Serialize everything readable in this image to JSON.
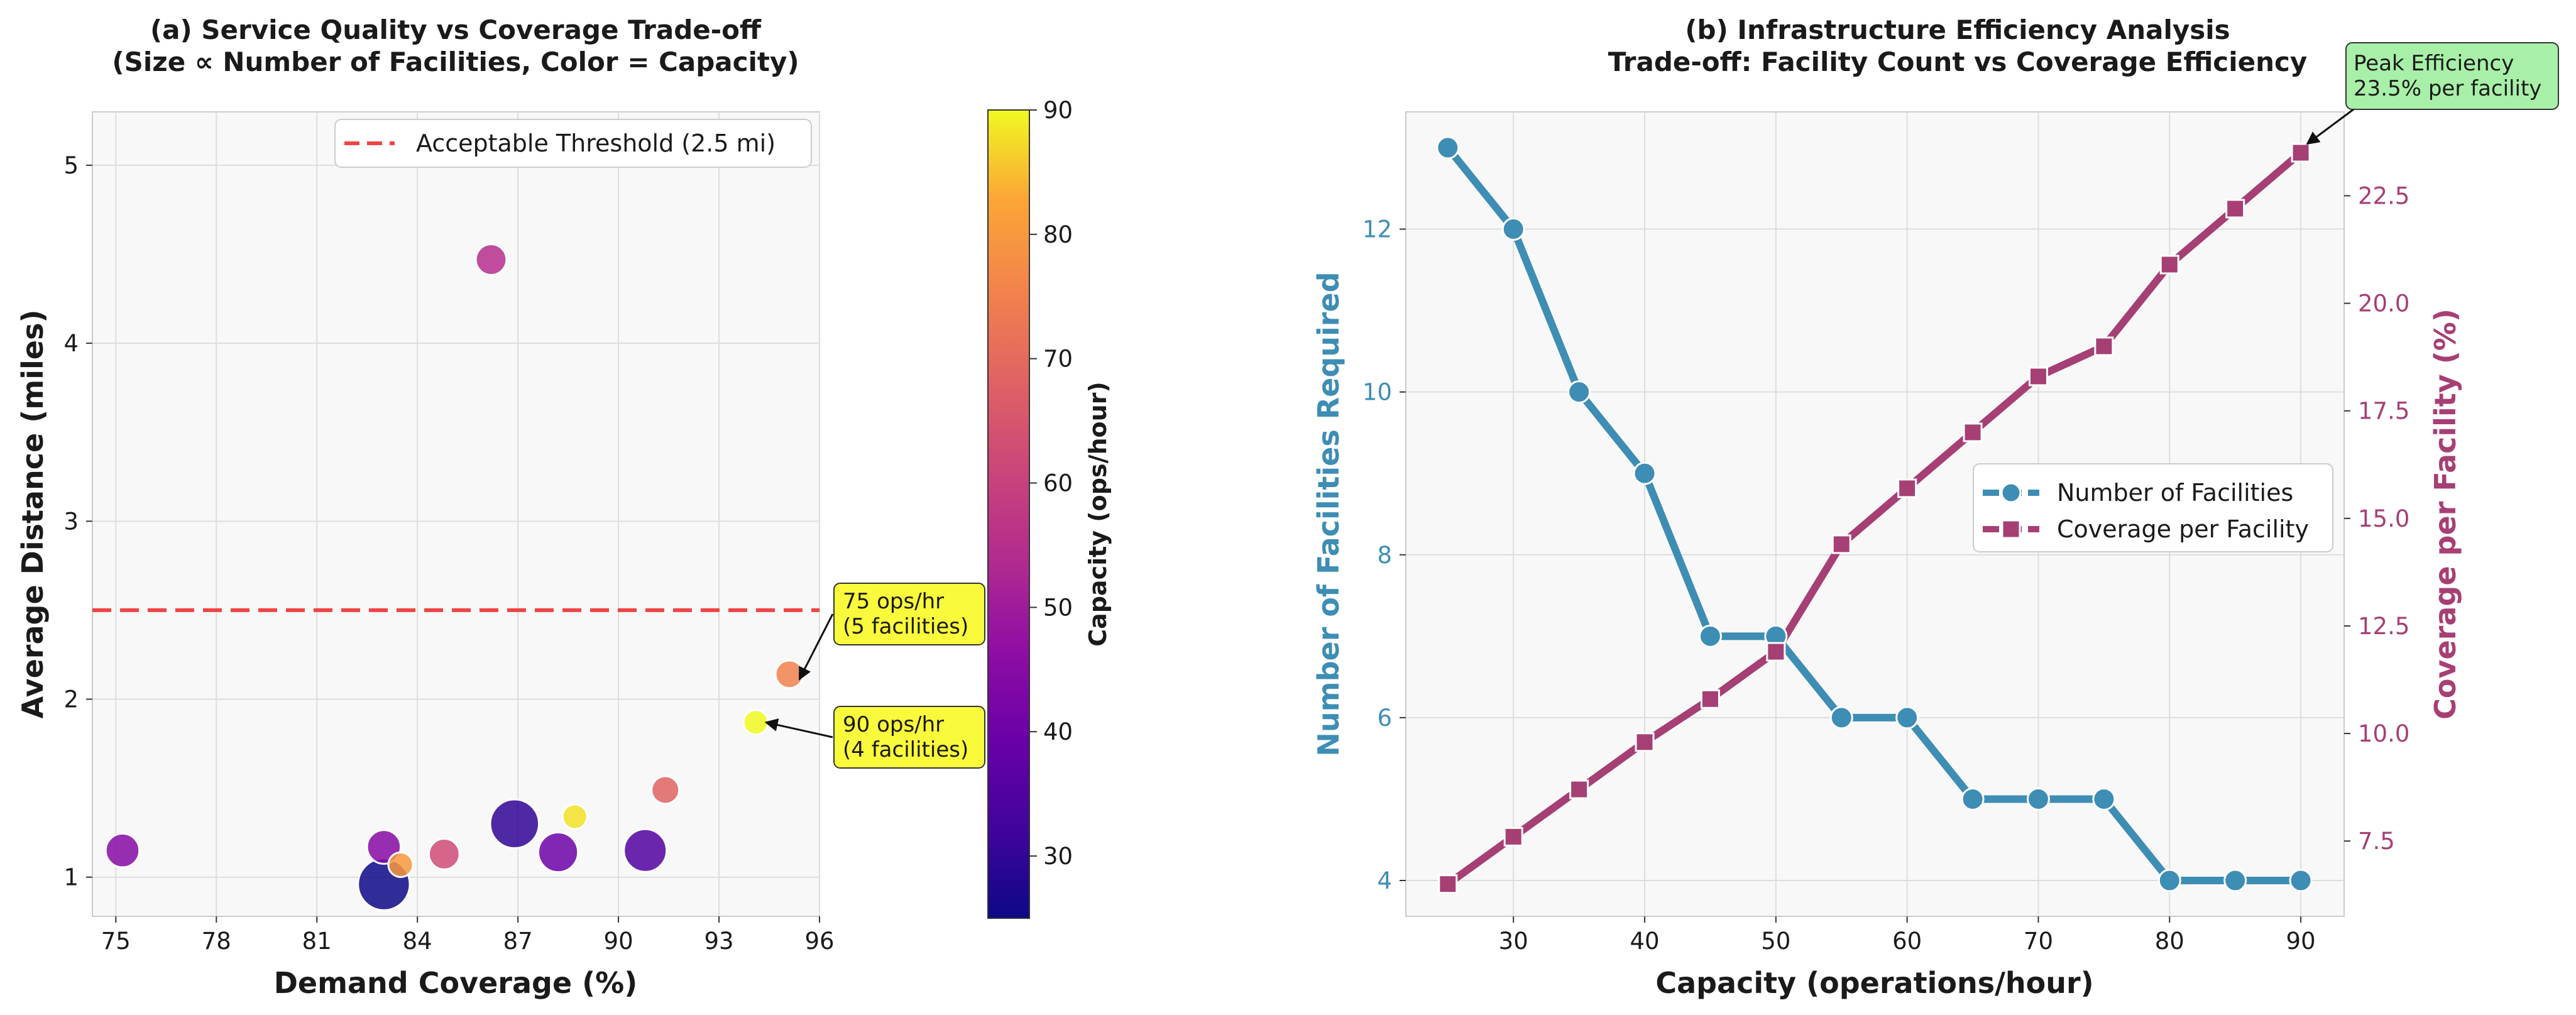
{
  "colors": {
    "threshold": "#EF4444",
    "facilities": "#3E8DB4",
    "coverage": "#A63F74",
    "annotation_yellow": "#FAFA3C",
    "annotation_green": "#A8F0A8",
    "axes_bg": "#F8F8F8",
    "grid": "#DDDDDD"
  },
  "colormap": "plasma",
  "chart_data": [
    {
      "type": "scatter",
      "title": "(a) Service Quality vs Coverage Trade-off",
      "subtitle": "(Size ∝ Number of Facilities, Color = Capacity)",
      "xlabel": "Demand Coverage (%)",
      "ylabel": "Average Distance (miles)",
      "xlim": [
        74.3,
        96
      ],
      "ylim": [
        0.78,
        5.3
      ],
      "xticks": [
        75,
        78,
        81,
        84,
        87,
        90,
        93,
        96
      ],
      "yticks": [
        1,
        2,
        3,
        4,
        5
      ],
      "colorbar": {
        "label": "Capacity (ops/hour)",
        "range": [
          25,
          90
        ],
        "ticks": [
          30,
          40,
          50,
          60,
          70,
          80,
          90
        ]
      },
      "threshold": {
        "y": 2.5,
        "label": "Acceptable Threshold (2.5 mi)"
      },
      "legend_position": "top-right",
      "points": [
        {
          "x": 83.0,
          "y": 0.96,
          "capacity": 25,
          "facilities": 13
        },
        {
          "x": 86.9,
          "y": 1.3,
          "capacity": 30,
          "facilities": 12
        },
        {
          "x": 90.8,
          "y": 1.15,
          "capacity": 35,
          "facilities": 10
        },
        {
          "x": 88.2,
          "y": 1.14,
          "capacity": 40,
          "facilities": 9
        },
        {
          "x": 75.2,
          "y": 1.15,
          "capacity": 45,
          "facilities": 7
        },
        {
          "x": 83.0,
          "y": 1.17,
          "capacity": 45,
          "facilities": 7
        },
        {
          "x": 86.2,
          "y": 4.47,
          "capacity": 55,
          "facilities": 6
        },
        {
          "x": 84.8,
          "y": 1.13,
          "capacity": 62,
          "facilities": 6
        },
        {
          "x": 91.4,
          "y": 1.49,
          "capacity": 68,
          "facilities": 5
        },
        {
          "x": 95.1,
          "y": 2.14,
          "capacity": 75,
          "facilities": 5
        },
        {
          "x": 83.5,
          "y": 1.07,
          "capacity": 80,
          "facilities": 4
        },
        {
          "x": 88.7,
          "y": 1.34,
          "capacity": 88,
          "facilities": 4
        },
        {
          "x": 94.1,
          "y": 1.87,
          "capacity": 90,
          "facilities": 4
        }
      ],
      "annotations": [
        {
          "text1": "75 ops/hr",
          "text2": "(5 facilities)",
          "x": 95.1,
          "y": 2.14
        },
        {
          "text1": "90 ops/hr",
          "text2": "(4 facilities)",
          "x": 94.1,
          "y": 1.87
        }
      ]
    },
    {
      "type": "line",
      "title": "(b) Infrastructure Efficiency Analysis",
      "subtitle": "Trade-off: Facility Count vs Coverage Efficiency",
      "xlabel": "Capacity (operations/hour)",
      "ylabel": "Number of Facilities Required",
      "y2label": "Coverage per Facility (%)",
      "x": [
        25,
        30,
        35,
        40,
        45,
        50,
        55,
        60,
        65,
        70,
        75,
        80,
        85,
        90
      ],
      "xlim": [
        21.8,
        93.3
      ],
      "xticks": [
        30,
        40,
        50,
        60,
        70,
        80,
        90
      ],
      "ylim": [
        3.56,
        13.44
      ],
      "yticks": [
        4,
        6,
        8,
        10,
        12
      ],
      "y2lim": [
        5.75,
        24.45
      ],
      "y2ticks": [
        7.5,
        10.0,
        12.5,
        15.0,
        17.5,
        20.0,
        22.5
      ],
      "legend_position": "center-right",
      "series": [
        {
          "name": "Number of Facilities",
          "axis": "left",
          "marker": "circle",
          "values": [
            13,
            12,
            10,
            9,
            7,
            7,
            6,
            6,
            5,
            5,
            5,
            4,
            4,
            4
          ]
        },
        {
          "name": "Coverage per Facility",
          "axis": "right",
          "marker": "square",
          "values": [
            6.5,
            7.6,
            8.7,
            9.8,
            10.8,
            11.9,
            14.4,
            15.7,
            17.0,
            18.3,
            19.0,
            20.9,
            22.2,
            23.5
          ]
        }
      ],
      "annotation": {
        "text1": "Peak Efficiency",
        "text2": "23.5% per facility",
        "x": 90,
        "y": 23.5
      }
    }
  ]
}
